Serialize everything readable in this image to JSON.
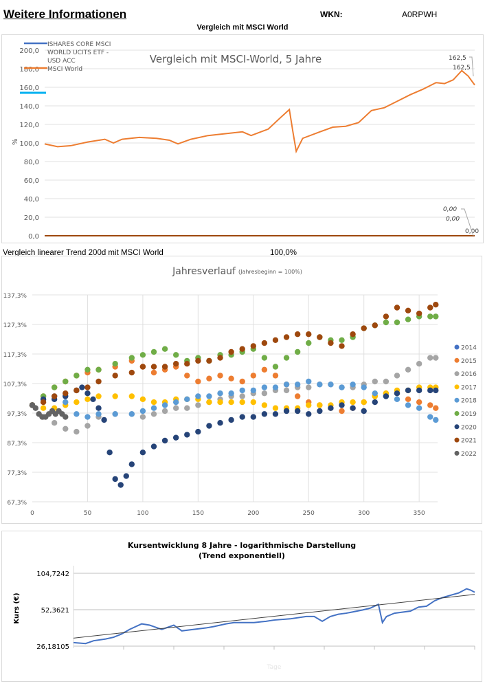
{
  "header": {
    "title": "Weitere Informationen",
    "wkn_label": "WKN:",
    "wkn_value": "A0RPWH",
    "subtitle": "Vergleich mit MSCI World"
  },
  "trend_row": {
    "label": "Vergleich linearer Trend 200d mit MSCI World",
    "value": "100,0%"
  },
  "chart_data": [
    {
      "type": "line",
      "title": "Vergleich mit MSCI-World, 5 Jahre",
      "ylabel": "%",
      "ylim": [
        0,
        200
      ],
      "yticks": [
        "0,0",
        "20,0",
        "40,0",
        "60,0",
        "80,0",
        "100,0",
        "120,0",
        "140,0",
        "160,0",
        "180,0",
        "200,0"
      ],
      "grid": true,
      "legend": "top-left",
      "annotations": [
        "162,5",
        "162,5",
        "0,00",
        "0,00",
        "0,00"
      ],
      "series": [
        {
          "name": "ISHARES CORE MSCI WORLD UCITS ETF - USD ACC",
          "color": "#4472c4",
          "x": [
            0,
            100
          ],
          "values": [
            0,
            0
          ]
        },
        {
          "name": "MSCI World",
          "color": "#ed7d31",
          "x": [
            0,
            3,
            6,
            10,
            14,
            16,
            18,
            22,
            26,
            29,
            31,
            34,
            38,
            42,
            46,
            48,
            52,
            55,
            56.9,
            57.8,
            58.5,
            60,
            64,
            67,
            70,
            73,
            76,
            79,
            82,
            85,
            88,
            91,
            93,
            95,
            97,
            98.5,
            100
          ],
          "values": [
            99,
            96,
            97,
            101,
            104,
            100,
            104,
            106,
            105,
            103,
            99,
            104,
            108,
            110,
            112,
            108,
            115,
            128,
            136,
            110,
            91,
            105,
            112,
            117,
            118,
            122,
            135,
            138,
            145,
            152,
            158,
            165,
            164,
            168,
            178,
            172,
            162.5
          ]
        }
      ]
    },
    {
      "type": "scatter",
      "title": "Jahresverlauf",
      "subtitle": "(Jahresbeginn = 100%)",
      "xlim": [
        0,
        365
      ],
      "xticks": [
        "0",
        "50",
        "100",
        "150",
        "200",
        "250",
        "300",
        "350"
      ],
      "ylim": [
        67.3,
        137.3
      ],
      "yticks": [
        "67,3%",
        "77,3%",
        "87,3%",
        "97,3%",
        "107,3%",
        "117,3%",
        "127,3%",
        "137,3%"
      ],
      "grid": true,
      "legend": "right",
      "series": [
        {
          "name": "2014",
          "color": "#4472c4",
          "x": [],
          "values": []
        },
        {
          "name": "2015",
          "color": "#ed7d31",
          "x": [
            0,
            10,
            20,
            30,
            40,
            50,
            60,
            75,
            90,
            100,
            110,
            120,
            130,
            140,
            150,
            160,
            170,
            180,
            190,
            200,
            210,
            220,
            230,
            240,
            250,
            260,
            270,
            280,
            290,
            300,
            310,
            320,
            330,
            340,
            350,
            360,
            365
          ],
          "values": [
            100,
            103,
            106,
            108,
            110,
            111,
            112,
            113,
            115,
            113,
            111,
            112,
            113,
            110,
            108,
            109,
            110,
            109,
            108,
            110,
            112,
            110,
            107,
            103,
            101,
            100,
            99,
            98,
            99,
            101,
            103,
            104,
            104,
            102,
            101,
            100,
            99
          ]
        },
        {
          "name": "2016",
          "color": "#a5a5a5",
          "x": [
            0,
            10,
            20,
            30,
            40,
            50,
            60,
            75,
            90,
            100,
            110,
            120,
            130,
            140,
            150,
            160,
            170,
            180,
            190,
            200,
            210,
            220,
            230,
            240,
            250,
            260,
            270,
            280,
            290,
            300,
            310,
            320,
            330,
            340,
            350,
            360,
            365
          ],
          "values": [
            100,
            96,
            94,
            92,
            91,
            93,
            96,
            97,
            97,
            96,
            97,
            98,
            99,
            99,
            100,
            101,
            102,
            103,
            103,
            104,
            104,
            105,
            105,
            106,
            106,
            107,
            107,
            106,
            106,
            107,
            108,
            108,
            110,
            112,
            114,
            116,
            116
          ]
        },
        {
          "name": "2017",
          "color": "#ffc000",
          "x": [
            0,
            10,
            20,
            30,
            40,
            50,
            60,
            75,
            90,
            100,
            110,
            120,
            130,
            140,
            150,
            160,
            170,
            180,
            190,
            200,
            210,
            220,
            230,
            240,
            250,
            260,
            270,
            280,
            290,
            300,
            310,
            320,
            330,
            340,
            350,
            360,
            365
          ],
          "values": [
            100,
            99,
            99,
            100,
            101,
            102,
            103,
            103,
            103,
            102,
            101,
            101,
            102,
            102,
            102,
            101,
            101,
            101,
            101,
            101,
            100,
            99,
            99,
            99,
            100,
            100,
            100,
            101,
            101,
            101,
            103,
            104,
            105,
            105,
            106,
            106,
            106
          ]
        },
        {
          "name": "2018",
          "color": "#5b9bd5",
          "x": [
            0,
            10,
            20,
            30,
            40,
            50,
            60,
            75,
            90,
            100,
            110,
            120,
            130,
            140,
            150,
            160,
            170,
            180,
            190,
            200,
            210,
            220,
            230,
            240,
            250,
            260,
            270,
            280,
            290,
            300,
            310,
            320,
            330,
            340,
            350,
            360,
            365
          ],
          "values": [
            100,
            102,
            103,
            101,
            97,
            96,
            97,
            97,
            97,
            98,
            99,
            100,
            101,
            102,
            103,
            103,
            104,
            104,
            105,
            105,
            106,
            106,
            107,
            107,
            108,
            107,
            107,
            106,
            107,
            106,
            104,
            103,
            102,
            100,
            99,
            96,
            95
          ]
        },
        {
          "name": "2019",
          "color": "#70ad47",
          "x": [
            0,
            10,
            20,
            30,
            40,
            50,
            60,
            75,
            90,
            100,
            110,
            120,
            130,
            140,
            150,
            160,
            170,
            180,
            190,
            200,
            210,
            220,
            230,
            240,
            250,
            260,
            270,
            280,
            290,
            300,
            310,
            320,
            330,
            340,
            350,
            360,
            365
          ],
          "values": [
            100,
            103,
            106,
            108,
            110,
            112,
            112,
            114,
            116,
            117,
            118,
            119,
            117,
            115,
            116,
            115,
            117,
            117,
            118,
            119,
            116,
            113,
            116,
            118,
            121,
            123,
            122,
            122,
            123,
            126,
            127,
            128,
            128,
            129,
            130,
            130,
            130
          ]
        },
        {
          "name": "2020",
          "color": "#264478",
          "x": [
            0,
            10,
            20,
            30,
            40,
            45,
            50,
            55,
            60,
            65,
            70,
            75,
            80,
            85,
            90,
            100,
            110,
            120,
            130,
            140,
            150,
            160,
            170,
            180,
            190,
            200,
            210,
            220,
            230,
            240,
            250,
            260,
            270,
            280,
            290,
            300,
            310,
            320,
            330,
            340,
            350,
            360,
            365
          ],
          "values": [
            100,
            102,
            102,
            103,
            105,
            106,
            104,
            102,
            99,
            95,
            84,
            75,
            73,
            76,
            80,
            84,
            86,
            88,
            89,
            90,
            91,
            93,
            94,
            95,
            96,
            96,
            97,
            97,
            98,
            98,
            97,
            98,
            99,
            100,
            99,
            98,
            101,
            103,
            104,
            105,
            105,
            105,
            105
          ]
        },
        {
          "name": "2021",
          "color": "#9e480e",
          "x": [
            0,
            10,
            20,
            30,
            40,
            50,
            60,
            75,
            90,
            100,
            110,
            120,
            130,
            140,
            150,
            160,
            170,
            180,
            190,
            200,
            210,
            220,
            230,
            240,
            250,
            260,
            270,
            280,
            290,
            300,
            310,
            320,
            330,
            340,
            350,
            360,
            365
          ],
          "values": [
            100,
            101,
            103,
            104,
            105,
            106,
            108,
            110,
            111,
            113,
            113,
            113,
            114,
            114,
            115,
            115,
            116,
            118,
            119,
            120,
            121,
            122,
            123,
            124,
            124,
            123,
            121,
            120,
            124,
            126,
            127,
            130,
            133,
            132,
            131,
            133,
            134
          ]
        },
        {
          "name": "2022",
          "color": "#636363",
          "x": [
            0,
            3,
            6,
            9,
            12,
            15,
            18,
            21,
            24,
            27,
            30
          ],
          "values": [
            100,
            99,
            97,
            96,
            96,
            97,
            98,
            97,
            98,
            97,
            96
          ]
        }
      ]
    },
    {
      "type": "line",
      "title": "Kursentwicklung 8 Jahre - logarithmische Darstellung",
      "subtitle": "(Trend exponentiell)",
      "ylabel": "Kurs (€)",
      "xlabel": "Tage",
      "yscale": "log",
      "ylim": [
        26.18105,
        104.7242
      ],
      "yticks": [
        "26,18105",
        "52,3621",
        "104,7242"
      ],
      "grid": true,
      "series": [
        {
          "color": "#4472c4",
          "x": [
            0,
            3,
            5,
            8,
            10,
            12,
            14,
            17,
            19,
            20,
            22,
            24,
            25,
            27,
            30,
            33,
            35,
            38,
            40,
            45,
            48,
            50,
            54,
            58,
            60,
            62,
            64,
            66,
            68,
            72,
            74,
            76,
            77,
            78,
            80,
            84,
            86,
            88,
            90,
            92,
            94,
            96,
            98,
            99,
            100
          ],
          "values": [
            28,
            27.5,
            29,
            30,
            31,
            33,
            36,
            40,
            39,
            38,
            36,
            38,
            39,
            35,
            36,
            37,
            38,
            40,
            41,
            41,
            42,
            43,
            44,
            46,
            46,
            42,
            46,
            48,
            49,
            52,
            54,
            58,
            41,
            46,
            49,
            51,
            55,
            56,
            62,
            66,
            69,
            72,
            78,
            76,
            73
          ]
        },
        {
          "name": "Trend",
          "color": "#404040",
          "x": [
            0,
            100
          ],
          "values": [
            30.5,
            70
          ]
        }
      ]
    }
  ]
}
